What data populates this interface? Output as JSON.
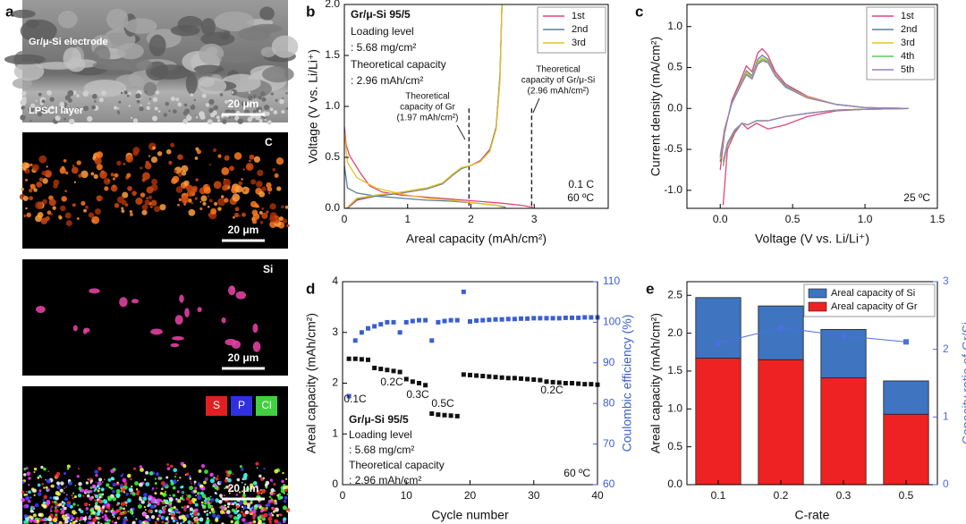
{
  "panel_a": {
    "panel": "a",
    "images": [
      {
        "labels": [
          "Gr/μ-Si electrode",
          "LPSCl layer"
        ],
        "scale_bar": "20 μm"
      },
      {
        "labels": [
          "C"
        ],
        "scale_bar": "20 μm"
      },
      {
        "labels": [
          "Si"
        ],
        "scale_bar": "20 μm"
      },
      {
        "labels": [
          "S",
          "P",
          "Cl"
        ],
        "scale_bar": "20 μm"
      }
    ]
  },
  "chart_data": [
    {
      "panel": "b",
      "type": "line",
      "xlabel": "Areal capacity (mAh/cm²)",
      "ylabel": "Voltage (V vs. Li/Li⁺)",
      "xlim": [
        0,
        4.17
      ],
      "xticks": [
        0,
        1,
        2,
        3
      ],
      "ylim": [
        0,
        2
      ],
      "yticks": [
        {
          "value": 0,
          "label": "0.0"
        },
        {
          "value": 0.5,
          "label": "0.5"
        },
        {
          "value": 1,
          "label": "1.0"
        },
        {
          "value": 1.5,
          "label": "1.5"
        },
        {
          "value": 2,
          "label": "2.0"
        }
      ],
      "legend": "upper right",
      "vlines": [
        1.97,
        2.96
      ],
      "annotations": [
        "Gr/μ-Si  95/5",
        "Loading level",
        ": 5.68 mg/cm²",
        "Theoretical capacity",
        ": 2.96 mAh/cm²",
        "Theoretical",
        "capacity of Gr",
        "(1.97 mAh/cm²)",
        "Theoretical",
        "capacity of Gr/μ-Si",
        "(2.96 mAh/cm²)",
        "0.1 C",
        "60 ºC"
      ],
      "series": [
        {
          "name": "1st",
          "color": "#e0457a",
          "x": [
            0,
            0.03,
            0.08,
            0.15,
            0.25,
            0.4,
            0.6,
            0.9,
            1.3,
            1.7,
            2.1,
            2.5,
            2.8,
            2.98,
            null,
            0.05,
            0.2,
            0.5,
            0.9,
            1.3,
            1.55,
            1.7,
            1.85,
            2.0,
            2.15,
            2.3,
            2.4,
            2.46,
            2.49
          ],
          "values": [
            0.8,
            0.62,
            0.52,
            0.45,
            0.35,
            0.22,
            0.16,
            0.13,
            0.11,
            0.09,
            0.07,
            0.05,
            0.03,
            0.01,
            null,
            0.0,
            0.08,
            0.12,
            0.15,
            0.19,
            0.24,
            0.32,
            0.39,
            0.42,
            0.47,
            0.58,
            0.8,
            1.3,
            2.0
          ]
        },
        {
          "name": "2nd",
          "color": "#5a7fa0",
          "x": [
            0,
            0.05,
            0.2,
            0.5,
            0.9,
            1.3,
            1.7,
            2.1,
            2.4,
            2.55,
            null,
            0.03,
            0.2,
            0.5,
            0.9,
            1.3,
            1.55,
            1.7,
            1.85,
            2.0,
            2.15,
            2.3,
            2.4,
            2.46,
            2.49
          ],
          "values": [
            0.42,
            0.2,
            0.15,
            0.12,
            0.1,
            0.08,
            0.07,
            0.05,
            0.03,
            0.01,
            null,
            0.0,
            0.09,
            0.12,
            0.15,
            0.19,
            0.24,
            0.32,
            0.39,
            0.42,
            0.46,
            0.57,
            0.8,
            1.3,
            2.0
          ]
        },
        {
          "name": "3rd",
          "color": "#e8c020",
          "x": [
            0,
            0.05,
            0.2,
            0.5,
            0.9,
            1.3,
            1.7,
            2.1,
            2.4,
            2.5,
            null,
            0.03,
            0.2,
            0.5,
            0.9,
            1.3,
            1.55,
            1.7,
            1.85,
            2.0,
            2.15,
            2.3,
            2.4,
            2.46,
            2.49
          ],
          "values": [
            0.75,
            0.45,
            0.3,
            0.2,
            0.14,
            0.1,
            0.08,
            0.05,
            0.03,
            0.01,
            null,
            0.0,
            0.1,
            0.13,
            0.16,
            0.2,
            0.25,
            0.33,
            0.4,
            0.42,
            0.46,
            0.56,
            0.78,
            1.25,
            2.0
          ]
        }
      ]
    },
    {
      "panel": "c",
      "type": "line",
      "xlabel": "Voltage (V vs. Li/Li⁺)",
      "ylabel": "Current density (mA/cm²)",
      "xlim": [
        -0.23,
        1.5
      ],
      "xticks": [
        {
          "value": 0,
          "label": "0.0"
        },
        {
          "value": 0.5,
          "label": "0.5"
        },
        {
          "value": 1,
          "label": "1.0"
        },
        {
          "value": 1.5,
          "label": "1.5"
        }
      ],
      "ylim": [
        -1.22,
        1.27
      ],
      "yticks": [
        {
          "value": -1,
          "label": "-1.0"
        },
        {
          "value": -0.5,
          "label": "-0.5"
        },
        {
          "value": 0,
          "label": "0.0"
        },
        {
          "value": 0.5,
          "label": "0.5"
        },
        {
          "value": 1,
          "label": "1.0"
        }
      ],
      "legend": "upper right",
      "annotations": [
        "25 ºC"
      ],
      "x": [
        0.0,
        0.03,
        0.08,
        0.13,
        0.18,
        0.22,
        0.26,
        0.29,
        0.33,
        0.38,
        0.45,
        0.6,
        0.8,
        1.0,
        1.3,
        1.0,
        0.8,
        0.6,
        0.45,
        0.33,
        0.25,
        0.19,
        0.15,
        0.1,
        0.05,
        0.02
      ],
      "series": [
        {
          "name": "1st",
          "color": "#e0457a",
          "values": [
            -0.75,
            -0.3,
            0.1,
            0.3,
            0.52,
            0.45,
            0.68,
            0.73,
            0.65,
            0.45,
            0.3,
            0.15,
            0.05,
            0.01,
            0.0,
            -0.01,
            -0.03,
            -0.1,
            -0.2,
            -0.25,
            -0.18,
            -0.25,
            -0.18,
            -0.3,
            -0.5,
            -1.18
          ]
        },
        {
          "name": "2nd",
          "color": "#5a7fa0",
          "values": [
            -0.65,
            -0.28,
            0.08,
            0.27,
            0.46,
            0.4,
            0.6,
            0.65,
            0.6,
            0.42,
            0.28,
            0.14,
            0.05,
            0.01,
            0.0,
            -0.01,
            -0.02,
            -0.06,
            -0.1,
            -0.15,
            -0.15,
            -0.2,
            -0.18,
            -0.28,
            -0.45,
            -0.7
          ]
        },
        {
          "name": "3rd",
          "color": "#e8c020",
          "values": [
            -0.62,
            -0.27,
            0.07,
            0.26,
            0.44,
            0.38,
            0.57,
            0.62,
            0.58,
            0.41,
            0.27,
            0.14,
            0.05,
            0.01,
            0.0,
            -0.01,
            -0.02,
            -0.06,
            -0.1,
            -0.15,
            -0.15,
            -0.2,
            -0.18,
            -0.27,
            -0.44,
            -0.68
          ]
        },
        {
          "name": "4th",
          "color": "#5cc85c",
          "values": [
            -0.6,
            -0.26,
            0.06,
            0.25,
            0.42,
            0.37,
            0.55,
            0.6,
            0.57,
            0.4,
            0.27,
            0.13,
            0.05,
            0.01,
            0.0,
            -0.01,
            -0.02,
            -0.06,
            -0.1,
            -0.15,
            -0.15,
            -0.2,
            -0.18,
            -0.27,
            -0.43,
            -0.66
          ]
        },
        {
          "name": "5th",
          "color": "#9a7fc0",
          "values": [
            -0.58,
            -0.25,
            0.06,
            0.24,
            0.41,
            0.36,
            0.54,
            0.58,
            0.56,
            0.4,
            0.26,
            0.13,
            0.05,
            0.01,
            0.0,
            -0.01,
            -0.02,
            -0.06,
            -0.1,
            -0.15,
            -0.15,
            -0.2,
            -0.18,
            -0.26,
            -0.42,
            -0.64
          ]
        }
      ]
    },
    {
      "panel": "d",
      "type": "scatter",
      "xlabel": "Cycle number",
      "ylabel": "Areal capacity (mAh/cm²)",
      "y2label": "Coulombic efficiency (%)",
      "xlim": [
        0,
        40
      ],
      "xticks": [
        0,
        10,
        20,
        30,
        40
      ],
      "ylim": [
        0,
        4
      ],
      "yticks": [
        0,
        1,
        2,
        3,
        4
      ],
      "y2lim": [
        60,
        110
      ],
      "y2ticks": [
        60,
        70,
        80,
        90,
        100,
        110
      ],
      "annotations": [
        "0.1C",
        "0.2C",
        "0.3C",
        "0.5C",
        "0.2C",
        "Gr/μ-Si  95/5",
        "Loading level",
        ": 5.68 mg/cm²",
        "Theoretical capacity",
        ": 2.96 mAh/cm²",
        "60 ºC"
      ],
      "x": [
        1,
        2,
        3,
        4,
        5,
        6,
        7,
        8,
        9,
        10,
        11,
        12,
        13,
        14,
        15,
        16,
        17,
        18,
        19,
        20,
        21,
        22,
        23,
        24,
        25,
        26,
        27,
        28,
        29,
        30,
        31,
        32,
        33,
        34,
        35,
        36,
        37,
        38,
        39,
        40
      ],
      "series": [
        {
          "color": "#111111",
          "values": [
            2.48,
            2.48,
            2.47,
            2.46,
            2.3,
            2.28,
            2.26,
            2.24,
            2.22,
            2.08,
            2.03,
            2.0,
            1.96,
            1.4,
            1.38,
            1.37,
            1.36,
            1.35,
            2.17,
            2.16,
            2.15,
            2.14,
            2.13,
            2.12,
            2.11,
            2.1,
            2.1,
            2.09,
            2.08,
            2.07,
            2.06,
            2.03,
            2.02,
            2.01,
            2.0,
            2.0,
            1.99,
            1.98,
            1.98,
            1.97
          ]
        },
        {
          "color": "#3a5fd0",
          "axis": "y2",
          "values": [
            81.8,
            95.5,
            97.5,
            98.5,
            99,
            99.5,
            100,
            100,
            97.5,
            100,
            100.3,
            100.5,
            100.5,
            95.5,
            100,
            100.3,
            100.5,
            100.5,
            107.5,
            100.2,
            100.4,
            100.5,
            100.6,
            100.7,
            100.7,
            100.8,
            100.8,
            100.9,
            100.9,
            101,
            101,
            101,
            101,
            101,
            101.1,
            101.1,
            101.1,
            101.2,
            101.2,
            101.2
          ]
        }
      ]
    },
    {
      "panel": "e",
      "type": "bar",
      "xlabel": "C-rate",
      "ylabel": "Areal capacity (mAh/cm²)",
      "y2label": "Capacity ratio of Gr/Si",
      "categories": [
        "0.1",
        "0.2",
        "0.3",
        "0.5"
      ],
      "ylim": [
        0,
        2.68
      ],
      "yticks": [
        {
          "value": 0,
          "label": "0.0"
        },
        {
          "value": 0.5,
          "label": "0.5"
        },
        {
          "value": 1,
          "label": "1.0"
        },
        {
          "value": 1.5,
          "label": "1.5"
        },
        {
          "value": 2,
          "label": "2.0"
        },
        {
          "value": 2.5,
          "label": "2.5"
        }
      ],
      "y2lim": [
        0,
        3
      ],
      "y2ticks": [
        0,
        1,
        2,
        3
      ],
      "legend": "upper right",
      "series": [
        {
          "name": "Areal capacity of Gr",
          "color": "#ee2222",
          "values": [
            1.67,
            1.65,
            1.41,
            0.93
          ]
        },
        {
          "name": "Areal capacity of Si",
          "color": "#3e74c0",
          "values": [
            0.8,
            0.71,
            0.64,
            0.44
          ]
        },
        {
          "color": "#4a6fe0",
          "axis": "y2",
          "values": [
            2.09,
            2.32,
            2.2,
            2.11
          ]
        }
      ]
    }
  ]
}
